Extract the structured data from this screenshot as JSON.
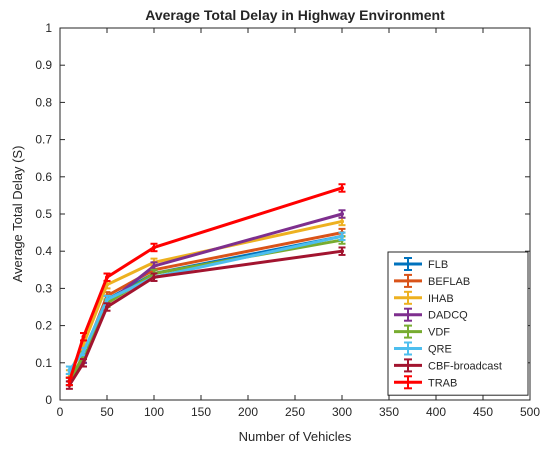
{
  "chart_data": {
    "type": "line",
    "title": "Average Total Delay in Highway Environment",
    "xlabel": "Number of Vehicles",
    "ylabel": "Average Total Delay (S)",
    "xlim": [
      0,
      500
    ],
    "ylim": [
      0,
      1
    ],
    "xticks": [
      0,
      50,
      100,
      150,
      200,
      250,
      300,
      350,
      400,
      450,
      500
    ],
    "yticks": [
      0,
      0.1,
      0.2,
      0.3,
      0.4,
      0.5,
      0.6,
      0.7,
      0.8,
      0.9,
      1
    ],
    "xtick_labels": [
      "0",
      "50",
      "100",
      "150",
      "200",
      "250",
      "300",
      "350",
      "400",
      "450",
      "500"
    ],
    "ytick_labels": [
      "0",
      "0.1",
      "0.2",
      "0.3",
      "0.4",
      "0.5",
      "0.6",
      "0.7",
      "0.8",
      "0.9",
      "1"
    ],
    "x": [
      10,
      25,
      50,
      100,
      300
    ],
    "grid": false,
    "legend_position": "bottom-right",
    "error_bars": true,
    "series": [
      {
        "name": "FLB",
        "color": "#0072BD",
        "values": [
          0.06,
          0.11,
          0.27,
          0.34,
          0.44
        ],
        "err": [
          0.01,
          0.01,
          0.01,
          0.01,
          0.01
        ]
      },
      {
        "name": "BEFLAB",
        "color": "#D95319",
        "values": [
          0.05,
          0.12,
          0.28,
          0.35,
          0.45
        ],
        "err": [
          0.01,
          0.01,
          0.01,
          0.01,
          0.01
        ]
      },
      {
        "name": "IHAB",
        "color": "#EDB120",
        "values": [
          0.07,
          0.15,
          0.31,
          0.37,
          0.48
        ],
        "err": [
          0.01,
          0.01,
          0.01,
          0.01,
          0.01
        ]
      },
      {
        "name": "DADCQ",
        "color": "#7E2F8E",
        "values": [
          0.05,
          0.11,
          0.26,
          0.36,
          0.5
        ],
        "err": [
          0.01,
          0.01,
          0.01,
          0.01,
          0.01
        ]
      },
      {
        "name": "VDF",
        "color": "#77AC30",
        "values": [
          0.05,
          0.12,
          0.26,
          0.34,
          0.43
        ],
        "err": [
          0.01,
          0.01,
          0.01,
          0.01,
          0.01
        ]
      },
      {
        "name": "QRE",
        "color": "#4DBEEE",
        "values": [
          0.08,
          0.13,
          0.27,
          0.33,
          0.44
        ],
        "err": [
          0.01,
          0.01,
          0.01,
          0.01,
          0.01
        ]
      },
      {
        "name": "CBF-broadcast",
        "color": "#A2142F",
        "values": [
          0.04,
          0.1,
          0.25,
          0.33,
          0.4
        ],
        "err": [
          0.01,
          0.01,
          0.01,
          0.01,
          0.01
        ]
      },
      {
        "name": "TRAB",
        "color": "#FF0000",
        "values": [
          0.05,
          0.17,
          0.33,
          0.41,
          0.57
        ],
        "err": [
          0.01,
          0.01,
          0.01,
          0.01,
          0.01
        ]
      }
    ]
  }
}
